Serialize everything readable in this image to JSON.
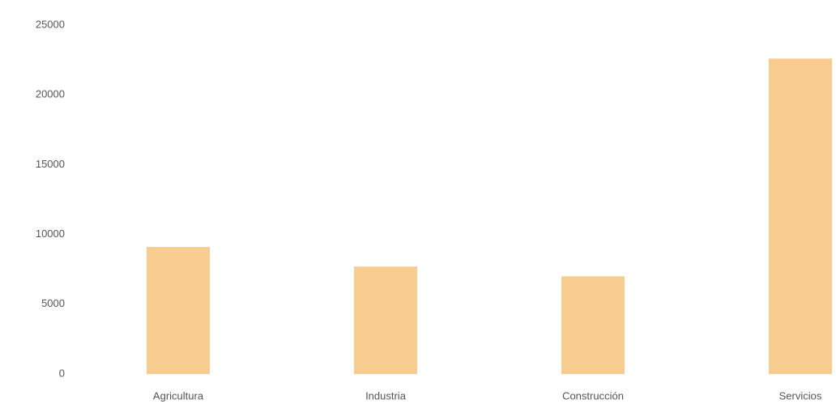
{
  "chart_data": {
    "type": "bar",
    "categories": [
      "Agricultura",
      "Industria",
      "Construcción",
      "Servicios"
    ],
    "values": [
      9100,
      7700,
      7000,
      22600
    ],
    "color": "#f8cb8e",
    "ylim": [
      0,
      25000
    ],
    "yticks": [
      0,
      5000,
      10000,
      15000,
      20000,
      25000
    ],
    "grid": false
  }
}
